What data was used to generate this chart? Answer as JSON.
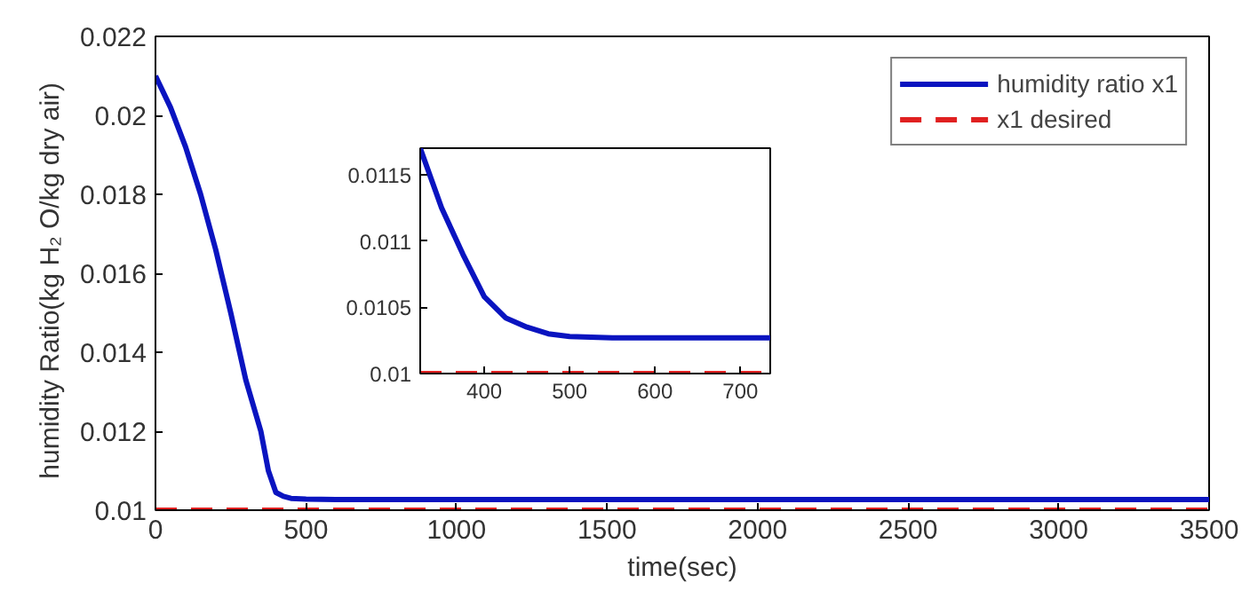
{
  "chart_data": [
    {
      "type": "line",
      "xlabel": "time(sec)",
      "ylabel": "humidity Ratio(kg H₂ O/kg  dry  air)",
      "xlim": [
        0,
        3500
      ],
      "ylim": [
        0.01,
        0.022
      ],
      "xticks": [
        0,
        500,
        1000,
        1500,
        2000,
        2500,
        3000,
        3500
      ],
      "yticks": [
        0.01,
        0.012,
        0.014,
        0.016,
        0.018,
        0.02,
        0.022
      ],
      "grid": false,
      "legend": "top right",
      "series": [
        {
          "name": "humidity ratio x1",
          "color": "#0a14c0",
          "line_style": "solid",
          "x": [
            0,
            50,
            100,
            150,
            200,
            250,
            300,
            350,
            375,
            400,
            425,
            450,
            500,
            600,
            1000,
            2000,
            3000,
            3500
          ],
          "values": [
            0.021,
            0.0202,
            0.0192,
            0.018,
            0.0166,
            0.015,
            0.0133,
            0.012,
            0.011,
            0.01045,
            0.01035,
            0.0103,
            0.01028,
            0.01027,
            0.01027,
            0.01027,
            0.01027,
            0.01027
          ]
        },
        {
          "name": "x1 desired",
          "color": "#e02020",
          "line_style": "dashed",
          "x": [
            0,
            3500
          ],
          "values": [
            0.01,
            0.01
          ]
        }
      ]
    },
    {
      "type": "line",
      "xlim": [
        325,
        735
      ],
      "ylim": [
        0.01,
        0.0117
      ],
      "xticks": [
        400,
        500,
        600,
        700
      ],
      "yticks": [
        0.01,
        0.0105,
        0.011,
        0.0115
      ],
      "grid": false,
      "series": [
        {
          "color": "#0a14c0",
          "line_style": "solid",
          "x": [
            325,
            350,
            375,
            400,
            425,
            450,
            475,
            500,
            550,
            600,
            735
          ],
          "values": [
            0.0117,
            0.01125,
            0.0109,
            0.01058,
            0.01042,
            0.01035,
            0.0103,
            0.01028,
            0.01027,
            0.01027,
            0.01027
          ]
        },
        {
          "color": "#e02020",
          "line_style": "dashed",
          "x": [
            325,
            735
          ],
          "values": [
            0.01,
            0.01
          ]
        }
      ]
    }
  ]
}
